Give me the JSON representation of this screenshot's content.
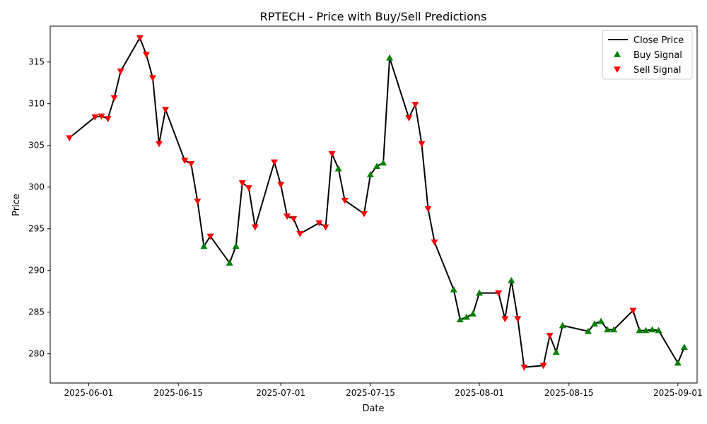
{
  "chart_data": {
    "type": "line",
    "title": "RPTECH - Price with Buy/Sell Predictions",
    "xlabel": "Date",
    "ylabel": "Price",
    "xlim": [
      "2025-05-26",
      "2025-09-04"
    ],
    "ylim": [
      276.5,
      319.3
    ],
    "x_ticks": [
      "2025-06-01",
      "2025-06-15",
      "2025-07-01",
      "2025-07-15",
      "2025-08-01",
      "2025-08-15",
      "2025-09-01"
    ],
    "y_ticks": [
      280,
      285,
      290,
      295,
      300,
      305,
      310,
      315
    ],
    "grid": false,
    "legend_position": "top-right",
    "colors": {
      "line": "#000000",
      "buy": "#008000",
      "sell": "#ff0000"
    },
    "series": [
      {
        "name": "Close Price",
        "kind": "line",
        "points": [
          [
            "2025-05-29",
            305.9
          ],
          [
            "2025-06-02",
            308.4
          ],
          [
            "2025-06-03",
            308.5
          ],
          [
            "2025-06-04",
            308.2
          ],
          [
            "2025-06-05",
            310.7
          ],
          [
            "2025-06-06",
            313.9
          ],
          [
            "2025-06-09",
            317.9
          ],
          [
            "2025-06-10",
            315.9
          ],
          [
            "2025-06-11",
            313.1
          ],
          [
            "2025-06-12",
            305.2
          ],
          [
            "2025-06-13",
            309.3
          ],
          [
            "2025-06-16",
            303.2
          ],
          [
            "2025-06-17",
            302.8
          ],
          [
            "2025-06-18",
            298.3
          ],
          [
            "2025-06-19",
            292.9
          ],
          [
            "2025-06-20",
            294.1
          ],
          [
            "2025-06-23",
            290.9
          ],
          [
            "2025-06-24",
            292.9
          ],
          [
            "2025-06-25",
            300.5
          ],
          [
            "2025-06-26",
            299.9
          ],
          [
            "2025-06-27",
            295.2
          ],
          [
            "2025-06-30",
            303.0
          ],
          [
            "2025-07-01",
            300.3
          ],
          [
            "2025-07-02",
            296.5
          ],
          [
            "2025-07-03",
            296.2
          ],
          [
            "2025-07-04",
            294.4
          ],
          [
            "2025-07-07",
            295.7
          ],
          [
            "2025-07-08",
            295.2
          ],
          [
            "2025-07-09",
            304.0
          ],
          [
            "2025-07-10",
            302.2
          ],
          [
            "2025-07-11",
            298.4
          ],
          [
            "2025-07-14",
            296.8
          ],
          [
            "2025-07-15",
            301.5
          ],
          [
            "2025-07-16",
            302.5
          ],
          [
            "2025-07-17",
            302.9
          ],
          [
            "2025-07-18",
            315.5
          ],
          [
            "2025-07-21",
            308.3
          ],
          [
            "2025-07-22",
            309.9
          ],
          [
            "2025-07-23",
            305.2
          ],
          [
            "2025-07-24",
            297.4
          ],
          [
            "2025-07-25",
            293.4
          ],
          [
            "2025-07-28",
            287.7
          ],
          [
            "2025-07-29",
            284.1
          ],
          [
            "2025-07-30",
            284.4
          ],
          [
            "2025-07-31",
            284.8
          ],
          [
            "2025-08-01",
            287.3
          ],
          [
            "2025-08-04",
            287.3
          ],
          [
            "2025-08-05",
            284.2
          ],
          [
            "2025-08-06",
            288.8
          ],
          [
            "2025-08-07",
            284.2
          ],
          [
            "2025-08-08",
            278.4
          ],
          [
            "2025-08-11",
            278.6
          ],
          [
            "2025-08-12",
            282.2
          ],
          [
            "2025-08-13",
            280.2
          ],
          [
            "2025-08-14",
            283.4
          ],
          [
            "2025-08-18",
            282.7
          ],
          [
            "2025-08-19",
            283.6
          ],
          [
            "2025-08-20",
            283.9
          ],
          [
            "2025-08-21",
            282.9
          ],
          [
            "2025-08-22",
            282.9
          ],
          [
            "2025-08-25",
            285.2
          ],
          [
            "2025-08-26",
            282.8
          ],
          [
            "2025-08-27",
            282.8
          ],
          [
            "2025-08-28",
            282.9
          ],
          [
            "2025-08-29",
            282.8
          ],
          [
            "2025-09-01",
            278.9
          ],
          [
            "2025-09-02",
            280.8
          ]
        ]
      },
      {
        "name": "Buy Signal",
        "kind": "scatter",
        "marker": "triangle-up",
        "points": [
          [
            "2025-06-19",
            292.9
          ],
          [
            "2025-06-23",
            290.9
          ],
          [
            "2025-06-24",
            292.9
          ],
          [
            "2025-07-10",
            302.2
          ],
          [
            "2025-07-15",
            301.5
          ],
          [
            "2025-07-16",
            302.5
          ],
          [
            "2025-07-17",
            302.9
          ],
          [
            "2025-07-18",
            315.5
          ],
          [
            "2025-07-28",
            287.7
          ],
          [
            "2025-07-29",
            284.1
          ],
          [
            "2025-07-30",
            284.4
          ],
          [
            "2025-07-31",
            284.8
          ],
          [
            "2025-08-01",
            287.3
          ],
          [
            "2025-08-06",
            288.8
          ],
          [
            "2025-08-13",
            280.2
          ],
          [
            "2025-08-14",
            283.4
          ],
          [
            "2025-08-18",
            282.7
          ],
          [
            "2025-08-19",
            283.6
          ],
          [
            "2025-08-20",
            283.9
          ],
          [
            "2025-08-21",
            282.9
          ],
          [
            "2025-08-22",
            282.9
          ],
          [
            "2025-08-26",
            282.8
          ],
          [
            "2025-08-27",
            282.8
          ],
          [
            "2025-08-28",
            282.9
          ],
          [
            "2025-08-29",
            282.8
          ],
          [
            "2025-09-01",
            278.9
          ],
          [
            "2025-09-02",
            280.8
          ]
        ]
      },
      {
        "name": "Sell Signal",
        "kind": "scatter",
        "marker": "triangle-down",
        "points": [
          [
            "2025-05-29",
            305.9
          ],
          [
            "2025-06-02",
            308.4
          ],
          [
            "2025-06-03",
            308.5
          ],
          [
            "2025-06-04",
            308.2
          ],
          [
            "2025-06-05",
            310.7
          ],
          [
            "2025-06-06",
            313.9
          ],
          [
            "2025-06-09",
            317.9
          ],
          [
            "2025-06-10",
            315.9
          ],
          [
            "2025-06-11",
            313.1
          ],
          [
            "2025-06-12",
            305.2
          ],
          [
            "2025-06-13",
            309.3
          ],
          [
            "2025-06-16",
            303.2
          ],
          [
            "2025-06-17",
            302.8
          ],
          [
            "2025-06-18",
            298.3
          ],
          [
            "2025-06-20",
            294.1
          ],
          [
            "2025-06-25",
            300.5
          ],
          [
            "2025-06-26",
            299.9
          ],
          [
            "2025-06-27",
            295.2
          ],
          [
            "2025-06-30",
            303.0
          ],
          [
            "2025-07-01",
            300.3
          ],
          [
            "2025-07-02",
            296.5
          ],
          [
            "2025-07-03",
            296.2
          ],
          [
            "2025-07-04",
            294.4
          ],
          [
            "2025-07-07",
            295.7
          ],
          [
            "2025-07-08",
            295.2
          ],
          [
            "2025-07-09",
            304.0
          ],
          [
            "2025-07-11",
            298.4
          ],
          [
            "2025-07-14",
            296.8
          ],
          [
            "2025-07-21",
            308.3
          ],
          [
            "2025-07-22",
            309.9
          ],
          [
            "2025-07-23",
            305.2
          ],
          [
            "2025-07-24",
            297.4
          ],
          [
            "2025-07-25",
            293.4
          ],
          [
            "2025-08-04",
            287.3
          ],
          [
            "2025-08-05",
            284.2
          ],
          [
            "2025-08-07",
            284.2
          ],
          [
            "2025-08-08",
            278.4
          ],
          [
            "2025-08-11",
            278.6
          ],
          [
            "2025-08-12",
            282.2
          ],
          [
            "2025-08-25",
            285.2
          ]
        ]
      }
    ]
  }
}
